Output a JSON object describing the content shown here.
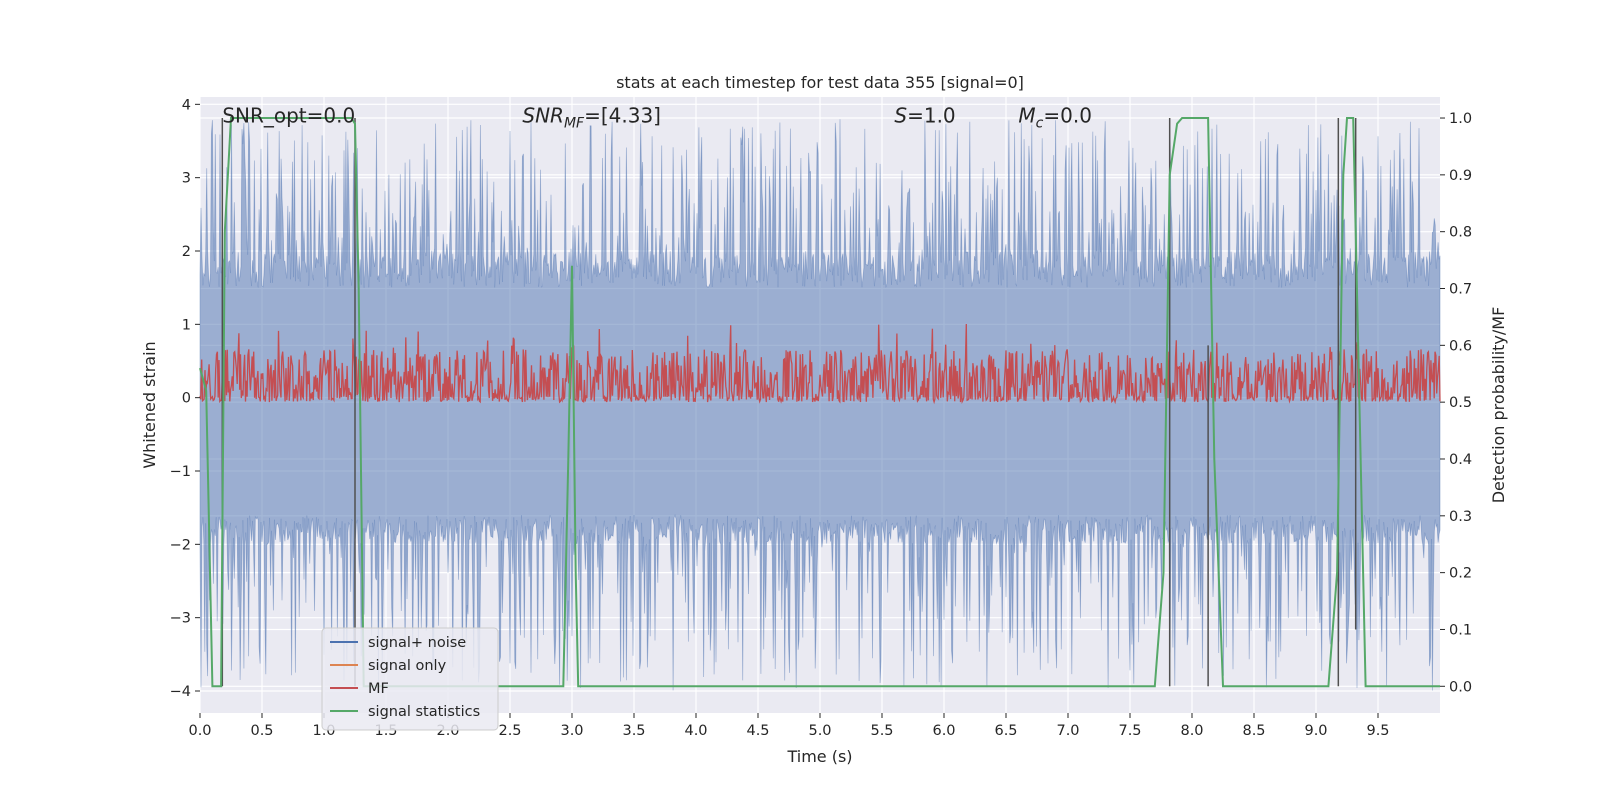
{
  "chart_data": {
    "type": "line",
    "title": "stats at each timestep for test data 355 [signal=0]",
    "xlabel": "Time (s)",
    "ylabel": "Whitened strain",
    "y2label": "Detection probability/MF",
    "xlim": [
      0.0,
      10.0
    ],
    "ylim": [
      -4.3,
      4.1
    ],
    "y2lim": [
      -0.047,
      1.037
    ],
    "x_ticks": [
      0.0,
      0.5,
      1.0,
      1.5,
      2.0,
      2.5,
      3.0,
      3.5,
      4.0,
      4.5,
      5.0,
      5.5,
      6.0,
      6.5,
      7.0,
      7.5,
      8.0,
      8.5,
      9.0,
      9.5
    ],
    "x_tick_labels": [
      "0.0",
      "0.5",
      "1.0",
      "1.5",
      "2.0",
      "2.5",
      "3.0",
      "3.5",
      "4.0",
      "4.5",
      "5.0",
      "5.5",
      "6.0",
      "6.5",
      "7.0",
      "7.5",
      "8.0",
      "8.5",
      "9.0",
      "9.5"
    ],
    "y_ticks": [
      4,
      3,
      2,
      1,
      0,
      -1,
      -2,
      -3,
      -4
    ],
    "y_tick_labels": [
      "4",
      "3",
      "2",
      "1",
      "0",
      "−1",
      "−2",
      "−3",
      "−4"
    ],
    "y2_ticks": [
      1.0,
      0.9,
      0.8,
      0.7,
      0.6,
      0.5,
      0.4,
      0.3,
      0.2,
      0.1,
      0.0
    ],
    "y2_tick_labels": [
      "1.0",
      "0.9",
      "0.8",
      "0.7",
      "0.6",
      "0.5",
      "0.4",
      "0.3",
      "0.2",
      "0.1",
      "0.0"
    ],
    "grid": true,
    "legend_placement": "lower-left",
    "annotations": [
      {
        "id": "snr-opt",
        "x": 0.18,
        "y": 3.85,
        "text": "SNR_opt=0.0",
        "math": false
      },
      {
        "id": "snr-mf",
        "x": 2.6,
        "y": 3.85,
        "base": "SNR",
        "sub": "MF",
        "rest": "=[4.33]",
        "math": true
      },
      {
        "id": "s-value",
        "x": 5.6,
        "y": 3.85,
        "base": "S",
        "sub": "",
        "rest": "=1.0",
        "math": true
      },
      {
        "id": "mc-value",
        "x": 6.6,
        "y": 3.85,
        "base": "M",
        "sub": "c",
        "rest": "=0.0",
        "math": true
      }
    ],
    "series": [
      {
        "name": "signal+ noise",
        "color": "#4c72b0",
        "axis": "left",
        "style": "noise",
        "band_upper_typical": 1.5,
        "band_lower_typical": -1.6,
        "peak_max": 3.8,
        "trough_min": -4.0
      },
      {
        "name": "signal only",
        "color": "#dd8452",
        "axis": "left",
        "values": []
      },
      {
        "name": "MF",
        "color": "#c44e52",
        "axis": "right",
        "style": "noise",
        "baseline": 0.51,
        "typical_max": 0.59,
        "peak_max": 0.64
      },
      {
        "name": "signal statistics",
        "color": "#55a868",
        "axis": "right",
        "points": [
          [
            0.0,
            0.56
          ],
          [
            0.05,
            0.52
          ],
          [
            0.1,
            0.0
          ],
          [
            0.17,
            0.0
          ],
          [
            0.2,
            0.8
          ],
          [
            0.25,
            1.0
          ],
          [
            1.22,
            1.0
          ],
          [
            1.25,
            0.99
          ],
          [
            1.28,
            0.7
          ],
          [
            1.32,
            0.0
          ],
          [
            2.93,
            0.0
          ],
          [
            2.97,
            0.4
          ],
          [
            3.0,
            0.74
          ],
          [
            3.03,
            0.2
          ],
          [
            3.05,
            0.0
          ],
          [
            7.7,
            0.0
          ],
          [
            7.77,
            0.2
          ],
          [
            7.82,
            0.9
          ],
          [
            7.88,
            0.99
          ],
          [
            7.92,
            1.0
          ],
          [
            8.13,
            1.0
          ],
          [
            8.18,
            0.4
          ],
          [
            8.25,
            0.0
          ],
          [
            9.1,
            0.0
          ],
          [
            9.17,
            0.2
          ],
          [
            9.22,
            0.9
          ],
          [
            9.25,
            1.0
          ],
          [
            9.3,
            1.0
          ],
          [
            9.35,
            0.5
          ],
          [
            9.4,
            0.0
          ],
          [
            10.0,
            0.0
          ]
        ]
      },
      {
        "name": "",
        "color": "#505050",
        "axis": "right",
        "style": "event-markers",
        "events": [
          {
            "x": 0.18,
            "ymin": 0.0,
            "ymax": 1.0
          },
          {
            "x": 1.25,
            "ymin": 0.0,
            "ymax": 1.0
          },
          {
            "x": 7.82,
            "ymin": 0.0,
            "ymax": 1.0
          },
          {
            "x": 8.13,
            "ymin": 0.0,
            "ymax": 0.6
          },
          {
            "x": 9.18,
            "ymin": 0.0,
            "ymax": 1.0
          },
          {
            "x": 9.32,
            "ymin": 0.1,
            "ymax": 1.0
          }
        ]
      }
    ],
    "legend_entries": [
      {
        "label": "signal+ noise",
        "color": "#4c72b0"
      },
      {
        "label": "signal only",
        "color": "#dd8452"
      },
      {
        "label": "MF",
        "color": "#c44e52"
      },
      {
        "label": "signal statistics",
        "color": "#55a868"
      }
    ],
    "colors": {
      "plot_background": "#eaeaf2",
      "grid": "#ffffff",
      "text": "#262626"
    }
  }
}
